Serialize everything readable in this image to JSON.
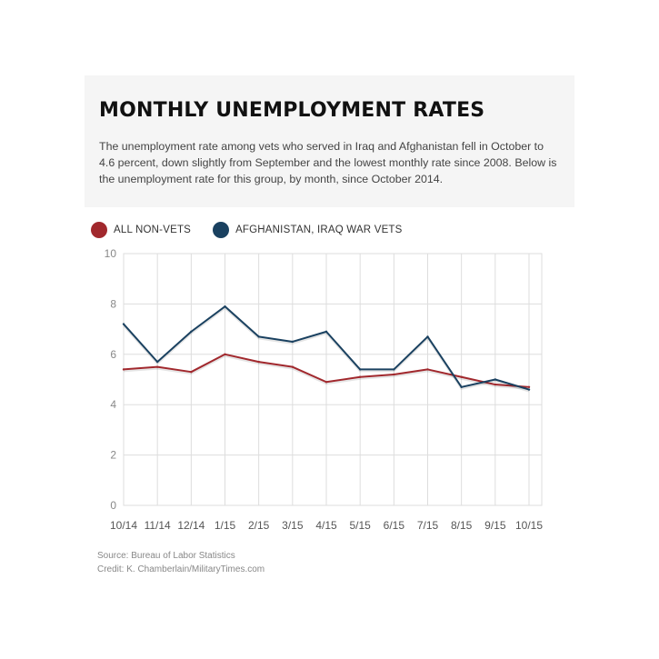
{
  "header": {
    "title": "MONTHLY UNEMPLOYMENT RATES",
    "description": "The unemployment rate among vets who served in Iraq and Afghanistan fell in October to 4.6 percent, down slightly from September and the lowest monthly rate since 2008. Below is the unemployment rate for this group, by month, since October 2014."
  },
  "legend": [
    {
      "label": "ALL NON-VETS",
      "color": "#a1282d"
    },
    {
      "label": "AFGHANISTAN, IRAQ WAR VETS",
      "color": "#1a4160"
    }
  ],
  "footer": {
    "source": "Source: Bureau of Labor Statistics",
    "credit": "Credit: K. Chamberlain/MilitaryTimes.com"
  },
  "chart_data": {
    "type": "line",
    "categories": [
      "10/14",
      "11/14",
      "12/14",
      "1/15",
      "2/15",
      "3/15",
      "4/15",
      "5/15",
      "6/15",
      "7/15",
      "8/15",
      "9/15",
      "10/15"
    ],
    "series": [
      {
        "name": "ALL NON-VETS",
        "color": "#a1282d",
        "values": [
          5.4,
          5.5,
          5.3,
          6.0,
          5.7,
          5.5,
          4.9,
          5.1,
          5.2,
          5.4,
          5.1,
          4.8,
          4.7
        ]
      },
      {
        "name": "AFGHANISTAN, IRAQ WAR VETS",
        "color": "#1a4160",
        "values": [
          7.2,
          5.7,
          6.9,
          7.9,
          6.7,
          6.5,
          6.9,
          5.4,
          5.4,
          6.7,
          4.7,
          5.0,
          4.6
        ]
      }
    ],
    "yticks": [
      0,
      2,
      4,
      6,
      8,
      10
    ],
    "ylim": [
      0,
      10
    ],
    "grid": true,
    "legend_position": "top-left"
  }
}
